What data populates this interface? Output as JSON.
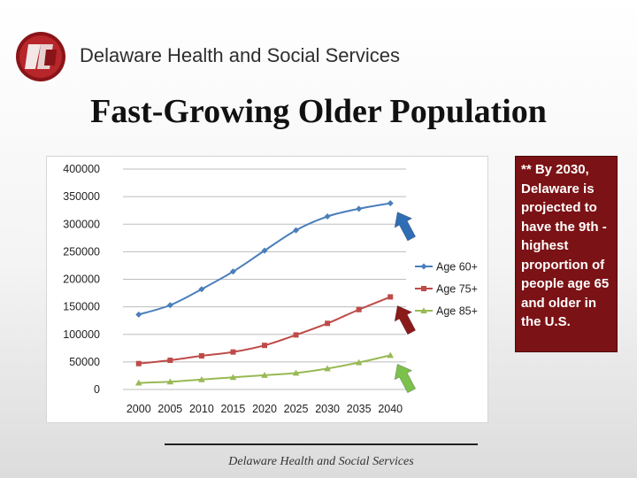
{
  "header": {
    "org_name": "Delaware Health and Social Services",
    "logo_icon": "dhss-logo-icon"
  },
  "slide": {
    "title": "Fast-Growing Older Population"
  },
  "note": {
    "text": "** By 2030, Delaware is projected to have the 9th -highest proportion of people age 65 and older in the U.S."
  },
  "footer": {
    "text": "Delaware Health and Social Services"
  },
  "colors": {
    "age60": "#4a7ebb",
    "age75": "#be4b48",
    "age85": "#98b954",
    "note_bg": "#7b1215",
    "arrow_blue": "#2f6db5",
    "arrow_red": "#8b1a1a",
    "arrow_green": "#7cc14b"
  },
  "chart_data": {
    "type": "line",
    "title": "",
    "xlabel": "",
    "ylabel": "",
    "x": [
      "2000",
      "2005",
      "2010",
      "2015",
      "2020",
      "2025",
      "2030",
      "2035",
      "2040"
    ],
    "ylim": [
      0,
      400000
    ],
    "yticks": [
      0,
      50000,
      100000,
      150000,
      200000,
      250000,
      300000,
      350000,
      400000
    ],
    "grid": true,
    "legend_position": "right",
    "series": [
      {
        "name": "Age 60+",
        "marker": "diamond",
        "values": [
          136000,
          153000,
          182000,
          214000,
          252000,
          289000,
          314000,
          328000,
          338000
        ]
      },
      {
        "name": "Age 75+",
        "marker": "square",
        "values": [
          47000,
          53000,
          61000,
          68000,
          80000,
          99000,
          120000,
          145000,
          168000
        ]
      },
      {
        "name": "Age 85+",
        "marker": "triangle",
        "values": [
          12000,
          14000,
          18000,
          22000,
          26000,
          30000,
          38000,
          49000,
          62000
        ]
      }
    ],
    "annotations": [
      {
        "type": "arrow",
        "series": "Age 60+",
        "color": "blue",
        "points_to": "2040"
      },
      {
        "type": "arrow",
        "series": "Age 75+",
        "color": "dark-red",
        "points_to": "2040"
      },
      {
        "type": "arrow",
        "series": "Age 85+",
        "color": "green",
        "points_to": "2040"
      }
    ]
  }
}
